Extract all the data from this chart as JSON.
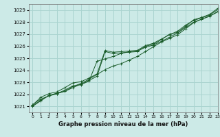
{
  "title": "Graphe pression niveau de la mer (hPa)",
  "bg_color": "#cceae7",
  "grid_color": "#aad4d0",
  "line_color": "#1a5c2a",
  "xlim": [
    -0.5,
    23
  ],
  "ylim": [
    1020.5,
    1029.5
  ],
  "yticks": [
    1021,
    1022,
    1023,
    1024,
    1025,
    1026,
    1027,
    1028,
    1029
  ],
  "xticks": [
    0,
    1,
    2,
    3,
    4,
    5,
    6,
    7,
    8,
    9,
    10,
    11,
    12,
    13,
    14,
    15,
    16,
    17,
    18,
    19,
    20,
    21,
    22,
    23
  ],
  "series": [
    [
      1021.15,
      1021.6,
      1021.85,
      1022.05,
      1022.25,
      1022.55,
      1022.85,
      1023.15,
      1023.5,
      1025.55,
      1025.4,
      1025.45,
      1025.5,
      1025.55,
      1026.0,
      1026.15,
      1026.55,
      1027.0,
      1027.15,
      1027.65,
      1028.2,
      1028.4,
      1028.65,
      1029.15
    ],
    [
      1021.05,
      1021.5,
      1021.9,
      1022.1,
      1022.25,
      1022.65,
      1022.9,
      1023.25,
      1023.65,
      1024.05,
      1024.35,
      1024.55,
      1024.85,
      1025.15,
      1025.55,
      1025.95,
      1026.35,
      1026.65,
      1026.95,
      1027.45,
      1027.95,
      1028.25,
      1028.5,
      1028.9
    ],
    [
      1021.1,
      1021.75,
      1022.05,
      1022.2,
      1022.55,
      1022.95,
      1023.05,
      1023.35,
      1023.7,
      1025.65,
      1025.5,
      1025.55,
      1025.6,
      1025.65,
      1026.05,
      1026.25,
      1026.6,
      1026.95,
      1027.25,
      1027.75,
      1028.15,
      1028.35,
      1028.6,
      1029.05
    ],
    [
      1021.0,
      1021.45,
      1021.9,
      1022.05,
      1022.35,
      1022.7,
      1022.8,
      1023.1,
      1024.75,
      1024.95,
      1025.15,
      1025.4,
      1025.55,
      1025.6,
      1025.9,
      1026.1,
      1026.4,
      1026.75,
      1027.1,
      1027.55,
      1028.0,
      1028.25,
      1028.5,
      1028.85
    ]
  ]
}
